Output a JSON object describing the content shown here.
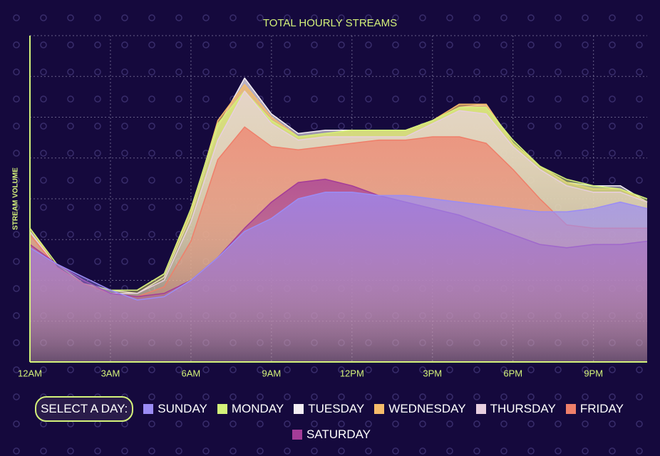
{
  "chart_data": {
    "type": "area",
    "title": "TOTAL HOURLY STREAMS",
    "y_label": "STREAM VOLUME",
    "legend_prompt": "SELECT A DAY:",
    "x": [
      0,
      1,
      2,
      3,
      4,
      5,
      6,
      7,
      8,
      9,
      10,
      11,
      12,
      13,
      14,
      15,
      16,
      17,
      18,
      19,
      20,
      21,
      22,
      23
    ],
    "xlim": [
      0,
      23
    ],
    "xticks": [
      {
        "value": 0,
        "label": "12AM"
      },
      {
        "value": 3,
        "label": "3AM"
      },
      {
        "value": 6,
        "label": "6AM"
      },
      {
        "value": 9,
        "label": "9AM"
      },
      {
        "value": 12,
        "label": "12PM"
      },
      {
        "value": 15,
        "label": "3PM"
      },
      {
        "value": 18,
        "label": "6PM"
      },
      {
        "value": 21,
        "label": "9PM"
      }
    ],
    "ylim": [
      0,
      100
    ],
    "yticks": [
      0,
      12.5,
      25,
      37.5,
      50,
      62.5,
      75,
      87.5,
      100
    ],
    "grid": true,
    "series": [
      {
        "name": "SUNDAY",
        "color": "#9b8cf5",
        "values": [
          35,
          30,
          26,
          22,
          19,
          20,
          25,
          32,
          40,
          44,
          50,
          52,
          52,
          51,
          51,
          50,
          49,
          48,
          47,
          46,
          46,
          47,
          49,
          47
        ]
      },
      {
        "name": "MONDAY",
        "color": "#d4f27a",
        "values": [
          41,
          30,
          24,
          22,
          22,
          27,
          47,
          73,
          83,
          74,
          69,
          70,
          71,
          71,
          71,
          74,
          78,
          78,
          68,
          60,
          56,
          54,
          53,
          50
        ]
      },
      {
        "name": "TUESDAY",
        "color": "#f4eef4",
        "values": [
          40,
          29,
          24,
          22,
          21,
          26,
          45,
          72,
          87,
          76,
          70,
          71,
          71,
          71,
          71,
          74,
          78,
          79,
          67,
          60,
          55,
          54,
          54,
          49
        ]
      },
      {
        "name": "WEDNESDAY",
        "color": "#f6bc6a",
        "values": [
          41,
          29,
          24,
          22,
          22,
          27,
          46,
          74,
          85,
          75,
          69,
          70,
          71,
          71,
          71,
          74,
          79,
          79,
          67,
          60,
          55,
          53,
          53,
          49
        ]
      },
      {
        "name": "THURSDAY",
        "color": "#e8cfe0",
        "values": [
          40,
          29,
          24,
          21,
          21,
          25,
          43,
          68,
          83,
          73,
          68,
          69,
          69,
          69,
          69,
          73,
          77,
          76,
          66,
          59,
          54,
          52,
          52,
          49
        ]
      },
      {
        "name": "FRIDAY",
        "color": "#ef7f6a",
        "values": [
          39,
          29,
          24,
          21,
          20,
          23,
          37,
          62,
          72,
          66,
          65,
          66,
          67,
          68,
          68,
          69,
          69,
          67,
          59,
          50,
          42,
          41,
          41,
          41
        ]
      },
      {
        "name": "SATURDAY",
        "color": "#a43c98",
        "values": [
          36,
          30,
          25,
          21,
          20,
          21,
          25,
          32,
          41,
          49,
          55,
          56,
          54,
          51,
          49,
          47,
          45,
          42,
          39,
          36,
          35,
          36,
          36,
          37
        ]
      }
    ]
  }
}
